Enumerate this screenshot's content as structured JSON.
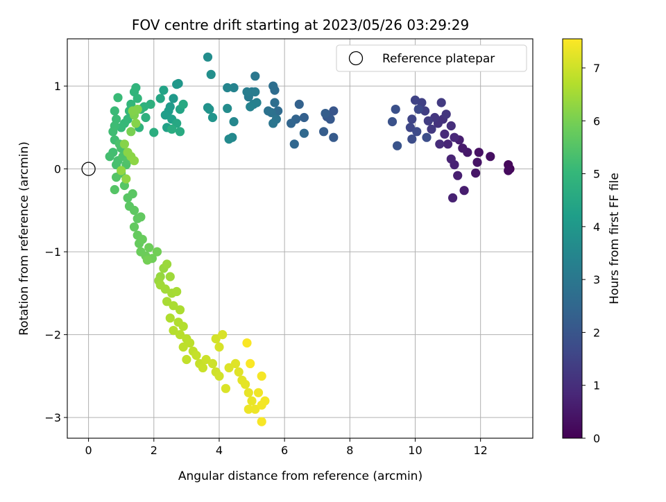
{
  "chart_data": {
    "type": "scatter",
    "title": "FOV centre drift starting at 2023/05/26 03:29:29",
    "xlabel": "Angular distance from reference (arcmin)",
    "ylabel": "Rotation from reference (arcmin)",
    "xlim": [
      -0.65,
      13.6
    ],
    "ylim": [
      -3.25,
      1.57
    ],
    "xticks": [
      0,
      2,
      4,
      6,
      8,
      10,
      12
    ],
    "yticks": [
      -3,
      -2,
      -1,
      0,
      1
    ],
    "grid": true,
    "legend": {
      "placement": "top-right",
      "entries": [
        "Reference platepar"
      ]
    },
    "reference_point": {
      "x": 0,
      "y": 0,
      "label": "Reference platepar"
    },
    "colorbar": {
      "label": "Hours from first FF file",
      "range": [
        0,
        7.55
      ],
      "ticks": [
        0,
        1,
        2,
        3,
        4,
        5,
        6,
        7
      ],
      "colormap": "viridis"
    },
    "points": [
      [
        12.9,
        0.0,
        0.1
      ],
      [
        12.85,
        0.05,
        0.15
      ],
      [
        12.85,
        -0.02,
        0.2
      ],
      [
        12.3,
        0.15,
        0.3
      ],
      [
        11.95,
        0.2,
        0.35
      ],
      [
        11.9,
        0.08,
        0.4
      ],
      [
        11.85,
        -0.05,
        0.45
      ],
      [
        11.6,
        0.2,
        0.5
      ],
      [
        11.45,
        0.25,
        0.55
      ],
      [
        11.5,
        -0.26,
        0.6
      ],
      [
        11.35,
        0.35,
        0.62
      ],
      [
        11.3,
        -0.08,
        0.65
      ],
      [
        11.15,
        -0.35,
        0.7
      ],
      [
        11.2,
        0.05,
        0.72
      ],
      [
        11.1,
        0.12,
        0.75
      ],
      [
        11.0,
        0.3,
        0.8
      ],
      [
        11.2,
        0.38,
        0.85
      ],
      [
        10.9,
        0.42,
        0.9
      ],
      [
        10.75,
        0.3,
        0.95
      ],
      [
        11.1,
        0.52,
        1.0
      ],
      [
        10.85,
        0.6,
        1.05
      ],
      [
        10.7,
        0.55,
        1.1
      ],
      [
        10.95,
        0.66,
        1.15
      ],
      [
        10.6,
        0.62,
        1.2
      ],
      [
        10.5,
        0.48,
        1.25
      ],
      [
        10.8,
        0.8,
        1.3
      ],
      [
        10.4,
        0.58,
        1.35
      ],
      [
        10.3,
        0.7,
        1.4
      ],
      [
        10.2,
        0.8,
        1.45
      ],
      [
        10.0,
        0.83,
        1.5
      ],
      [
        9.9,
        0.6,
        1.55
      ],
      [
        9.85,
        0.5,
        1.6
      ],
      [
        10.1,
        0.72,
        1.65
      ],
      [
        10.05,
        0.45,
        1.7
      ],
      [
        9.9,
        0.36,
        1.75
      ],
      [
        10.35,
        0.38,
        1.8
      ],
      [
        9.4,
        0.72,
        1.85
      ],
      [
        9.3,
        0.57,
        1.9
      ],
      [
        9.45,
        0.28,
        1.95
      ],
      [
        7.5,
        0.7,
        2.0
      ],
      [
        7.3,
        0.63,
        2.05
      ],
      [
        7.4,
        0.6,
        2.1
      ],
      [
        7.5,
        0.38,
        2.15
      ],
      [
        7.2,
        0.45,
        2.2
      ],
      [
        7.25,
        0.67,
        2.25
      ],
      [
        6.6,
        0.62,
        2.3
      ],
      [
        6.45,
        0.78,
        2.35
      ],
      [
        6.35,
        0.6,
        2.4
      ],
      [
        6.2,
        0.55,
        2.45
      ],
      [
        6.3,
        0.3,
        2.5
      ],
      [
        6.6,
        0.43,
        2.55
      ],
      [
        5.8,
        0.7,
        2.6
      ],
      [
        5.7,
        0.95,
        2.65
      ],
      [
        5.7,
        0.8,
        2.7
      ],
      [
        5.65,
        1.0,
        2.75
      ],
      [
        5.6,
        0.68,
        2.8
      ],
      [
        5.5,
        0.7,
        2.85
      ],
      [
        5.75,
        0.6,
        2.9
      ],
      [
        5.65,
        0.55,
        2.95
      ],
      [
        5.1,
        1.12,
        3.0
      ],
      [
        5.0,
        0.93,
        3.05
      ],
      [
        4.9,
        0.87,
        3.1
      ],
      [
        5.1,
        0.93,
        3.15
      ],
      [
        4.85,
        0.93,
        3.2
      ],
      [
        5.05,
        0.78,
        3.25
      ],
      [
        5.15,
        0.8,
        3.3
      ],
      [
        4.95,
        0.75,
        3.35
      ],
      [
        4.45,
        0.98,
        3.4
      ],
      [
        4.25,
        0.98,
        3.45
      ],
      [
        4.45,
        0.57,
        3.5
      ],
      [
        4.4,
        0.38,
        3.55
      ],
      [
        4.3,
        0.36,
        3.6
      ],
      [
        4.25,
        0.73,
        3.65
      ],
      [
        3.65,
        1.35,
        3.7
      ],
      [
        3.75,
        1.14,
        3.75
      ],
      [
        3.65,
        0.74,
        3.8
      ],
      [
        3.7,
        0.72,
        3.85
      ],
      [
        3.8,
        0.62,
        3.9
      ],
      [
        2.75,
        1.03,
        3.95
      ],
      [
        2.7,
        1.02,
        4.0
      ],
      [
        2.6,
        0.85,
        4.05
      ],
      [
        2.5,
        0.75,
        4.1
      ],
      [
        2.45,
        0.7,
        4.15
      ],
      [
        2.35,
        0.65,
        4.2
      ],
      [
        2.55,
        0.6,
        4.25
      ],
      [
        2.4,
        0.5,
        4.3
      ],
      [
        2.3,
        0.95,
        4.35
      ],
      [
        2.8,
        0.72,
        4.4
      ],
      [
        2.2,
        0.85,
        4.45
      ],
      [
        2.7,
        0.55,
        4.5
      ],
      [
        2.9,
        0.78,
        4.55
      ],
      [
        2.8,
        0.45,
        4.6
      ],
      [
        2.55,
        0.48,
        4.65
      ],
      [
        2.0,
        0.44,
        4.7
      ],
      [
        1.9,
        0.78,
        4.75
      ],
      [
        1.75,
        0.62,
        4.8
      ],
      [
        1.7,
        0.75,
        4.82
      ],
      [
        1.6,
        0.72,
        4.85
      ],
      [
        1.55,
        0.5,
        4.88
      ],
      [
        1.45,
        0.98,
        4.9
      ],
      [
        1.4,
        0.93,
        4.92
      ],
      [
        1.5,
        0.85,
        4.95
      ],
      [
        1.3,
        0.78,
        4.97
      ],
      [
        1.25,
        0.7,
        5.0
      ],
      [
        1.2,
        0.6,
        5.02
      ],
      [
        1.1,
        0.55,
        5.05
      ],
      [
        1.0,
        0.5,
        5.07
      ],
      [
        0.9,
        0.86,
        5.1
      ],
      [
        0.8,
        0.7,
        5.12
      ],
      [
        0.85,
        0.6,
        5.15
      ],
      [
        0.8,
        0.52,
        5.17
      ],
      [
        0.75,
        0.45,
        5.2
      ],
      [
        0.8,
        0.35,
        5.22
      ],
      [
        0.75,
        0.2,
        5.25
      ],
      [
        0.65,
        0.15,
        5.27
      ],
      [
        0.85,
        0.05,
        5.3
      ],
      [
        0.9,
        0.1,
        5.32
      ],
      [
        1.0,
        0.25,
        5.35
      ],
      [
        0.95,
        0.3,
        5.37
      ],
      [
        1.05,
        0.15,
        5.4
      ],
      [
        1.15,
        0.05,
        5.42
      ],
      [
        1.2,
        0.1,
        5.45
      ],
      [
        1.0,
        -0.05,
        5.47
      ],
      [
        0.85,
        -0.1,
        5.5
      ],
      [
        0.8,
        -0.25,
        5.52
      ],
      [
        1.1,
        -0.2,
        5.55
      ],
      [
        1.2,
        -0.35,
        5.57
      ],
      [
        1.35,
        -0.3,
        5.6
      ],
      [
        1.25,
        -0.45,
        5.62
      ],
      [
        1.4,
        -0.5,
        5.65
      ],
      [
        1.5,
        -0.6,
        5.67
      ],
      [
        1.6,
        -0.58,
        5.7
      ],
      [
        1.4,
        -0.7,
        5.72
      ],
      [
        1.5,
        -0.8,
        5.75
      ],
      [
        1.55,
        -0.9,
        5.77
      ],
      [
        1.65,
        -0.85,
        5.8
      ],
      [
        1.6,
        -1.0,
        5.82
      ],
      [
        1.75,
        -1.05,
        5.85
      ],
      [
        1.85,
        -0.95,
        5.87
      ],
      [
        1.95,
        -1.08,
        5.9
      ],
      [
        2.1,
        -1.0,
        5.92
      ],
      [
        1.8,
        -1.1,
        5.95
      ],
      [
        1.3,
        0.45,
        6.0
      ],
      [
        1.4,
        0.65,
        6.05
      ],
      [
        1.5,
        0.72,
        6.1
      ],
      [
        1.35,
        0.7,
        6.12
      ],
      [
        1.45,
        0.55,
        6.15
      ],
      [
        1.1,
        0.3,
        6.17
      ],
      [
        1.2,
        0.2,
        6.2
      ],
      [
        1.3,
        0.15,
        6.22
      ],
      [
        1.4,
        0.1,
        6.25
      ],
      [
        1.15,
        -0.12,
        6.27
      ],
      [
        1.0,
        -0.02,
        6.3
      ],
      [
        2.2,
        -1.3,
        6.35
      ],
      [
        2.3,
        -1.2,
        6.37
      ],
      [
        2.15,
        -1.35,
        6.4
      ],
      [
        2.4,
        -1.15,
        6.42
      ],
      [
        2.5,
        -1.3,
        6.45
      ],
      [
        2.2,
        -1.4,
        6.47
      ],
      [
        2.35,
        -1.45,
        6.5
      ],
      [
        2.55,
        -1.5,
        6.52
      ],
      [
        2.7,
        -1.48,
        6.55
      ],
      [
        2.4,
        -1.6,
        6.57
      ],
      [
        2.6,
        -1.65,
        6.6
      ],
      [
        2.8,
        -1.7,
        6.62
      ],
      [
        2.5,
        -1.8,
        6.65
      ],
      [
        2.75,
        -1.85,
        6.67
      ],
      [
        2.9,
        -1.9,
        6.7
      ],
      [
        2.6,
        -1.95,
        6.72
      ],
      [
        2.8,
        -2.0,
        6.75
      ],
      [
        3.0,
        -2.05,
        6.77
      ],
      [
        3.1,
        -2.1,
        6.8
      ],
      [
        2.9,
        -2.15,
        6.82
      ],
      [
        3.2,
        -2.2,
        6.85
      ],
      [
        3.0,
        -2.3,
        6.87
      ],
      [
        3.3,
        -2.25,
        6.9
      ],
      [
        3.4,
        -2.35,
        6.92
      ],
      [
        3.5,
        -2.4,
        6.95
      ],
      [
        3.6,
        -2.3,
        6.97
      ],
      [
        3.8,
        -2.35,
        7.0
      ],
      [
        3.9,
        -2.45,
        7.02
      ],
      [
        4.0,
        -2.5,
        7.05
      ],
      [
        3.9,
        -2.05,
        7.07
      ],
      [
        4.0,
        -2.15,
        7.1
      ],
      [
        4.1,
        -2.0,
        7.12
      ],
      [
        4.2,
        -2.65,
        7.15
      ],
      [
        4.3,
        -2.4,
        7.17
      ],
      [
        4.5,
        -2.35,
        7.2
      ],
      [
        4.6,
        -2.45,
        7.22
      ],
      [
        4.7,
        -2.55,
        7.25
      ],
      [
        4.8,
        -2.6,
        7.27
      ],
      [
        4.9,
        -2.7,
        7.3
      ],
      [
        5.0,
        -2.8,
        7.32
      ],
      [
        4.9,
        -2.9,
        7.35
      ],
      [
        5.1,
        -2.9,
        7.37
      ],
      [
        5.2,
        -2.7,
        7.4
      ],
      [
        5.3,
        -2.85,
        7.42
      ],
      [
        5.4,
        -2.8,
        7.44
      ],
      [
        5.3,
        -2.5,
        7.46
      ],
      [
        5.3,
        -3.05,
        7.48
      ],
      [
        4.85,
        -2.1,
        7.5
      ],
      [
        4.95,
        -2.35,
        7.52
      ]
    ]
  }
}
